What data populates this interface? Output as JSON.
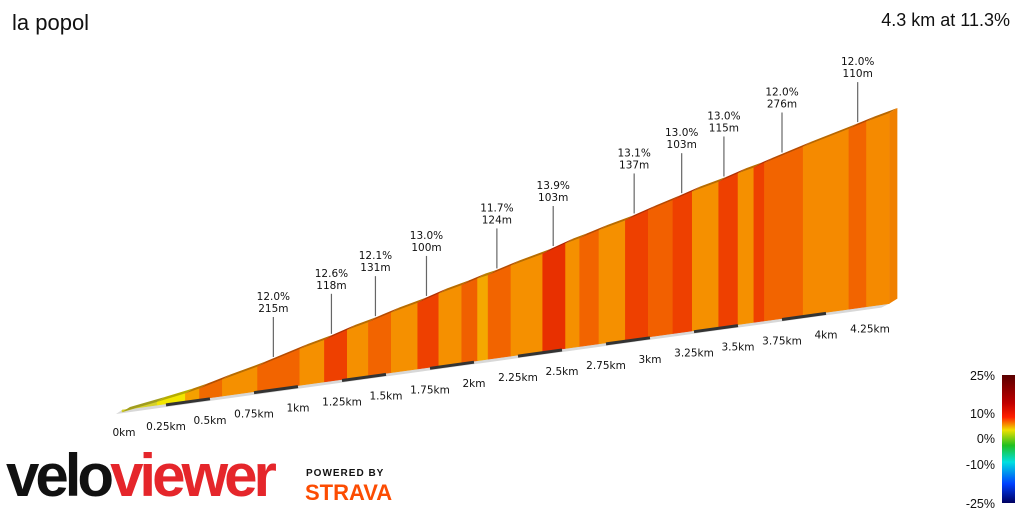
{
  "header": {
    "title": "la popol",
    "summary": "4.3 km at 11.3%"
  },
  "chart_data": {
    "type": "area",
    "title": "la popol",
    "subtitle": "4.3 km at 11.3%",
    "x_unit": "km",
    "x_ticks": [
      "0km",
      "0.25km",
      "0.5km",
      "0.75km",
      "1km",
      "1.25km",
      "1.5km",
      "1.75km",
      "2km",
      "2.25km",
      "2.5km",
      "2.75km",
      "3km",
      "3.25km",
      "3.5km",
      "3.75km",
      "4km",
      "4.25km"
    ],
    "segments": [
      {
        "end_km": 0.2,
        "gradient": 4,
        "color": "#d6d12a"
      },
      {
        "end_km": 0.36,
        "gradient": 7,
        "color": "#f2e600"
      },
      {
        "end_km": 0.44,
        "gradient": 9,
        "color": "#f5a000"
      },
      {
        "end_km": 0.57,
        "gradient": 11,
        "color": "#f06a00"
      },
      {
        "end_km": 0.77,
        "gradient": 10,
        "color": "#f59000"
      },
      {
        "end_km": 1.01,
        "gradient": 12,
        "color": "#f26400"
      },
      {
        "end_km": 1.15,
        "gradient": 10,
        "color": "#f59000"
      },
      {
        "end_km": 1.28,
        "gradient": 13,
        "color": "#ee4000"
      },
      {
        "end_km": 1.4,
        "gradient": 10,
        "color": "#f59000"
      },
      {
        "end_km": 1.53,
        "gradient": 12,
        "color": "#f26400"
      },
      {
        "end_km": 1.68,
        "gradient": 10,
        "color": "#f59000"
      },
      {
        "end_km": 1.8,
        "gradient": 13,
        "color": "#ee4000"
      },
      {
        "end_km": 1.93,
        "gradient": 10,
        "color": "#f59000"
      },
      {
        "end_km": 2.02,
        "gradient": 12,
        "color": "#f06000"
      },
      {
        "end_km": 2.08,
        "gradient": 8,
        "color": "#f5a800"
      },
      {
        "end_km": 2.21,
        "gradient": 12,
        "color": "#f26400"
      },
      {
        "end_km": 2.39,
        "gradient": 10,
        "color": "#f59000"
      },
      {
        "end_km": 2.52,
        "gradient": 14,
        "color": "#e83000"
      },
      {
        "end_km": 2.6,
        "gradient": 10,
        "color": "#f59000"
      },
      {
        "end_km": 2.71,
        "gradient": 12,
        "color": "#f26400"
      },
      {
        "end_km": 2.86,
        "gradient": 10,
        "color": "#f59000"
      },
      {
        "end_km": 2.99,
        "gradient": 13,
        "color": "#ee4000"
      },
      {
        "end_km": 3.13,
        "gradient": 12,
        "color": "#f26000"
      },
      {
        "end_km": 3.24,
        "gradient": 13,
        "color": "#ee4000"
      },
      {
        "end_km": 3.39,
        "gradient": 10,
        "color": "#f59000"
      },
      {
        "end_km": 3.5,
        "gradient": 13,
        "color": "#ee4000"
      },
      {
        "end_km": 3.59,
        "gradient": 10,
        "color": "#f59000"
      },
      {
        "end_km": 3.65,
        "gradient": 13,
        "color": "#ee4000"
      },
      {
        "end_km": 3.87,
        "gradient": 12,
        "color": "#f26400"
      },
      {
        "end_km": 4.13,
        "gradient": 11,
        "color": "#f58a00"
      },
      {
        "end_km": 4.23,
        "gradient": 12,
        "color": "#f26400"
      },
      {
        "end_km": 4.36,
        "gradient": 10,
        "color": "#f58a00"
      }
    ],
    "annotations": [
      {
        "km": 0.86,
        "gradient": "12.0%",
        "length": "215m"
      },
      {
        "km": 1.19,
        "gradient": "12.6%",
        "length": "118m"
      },
      {
        "km": 1.44,
        "gradient": "12.1%",
        "length": "131m"
      },
      {
        "km": 1.73,
        "gradient": "13.0%",
        "length": "100m"
      },
      {
        "km": 2.13,
        "gradient": "11.7%",
        "length": "124m"
      },
      {
        "km": 2.45,
        "gradient": "13.9%",
        "length": "103m"
      },
      {
        "km": 2.91,
        "gradient": "13.1%",
        "length": "137m"
      },
      {
        "km": 3.18,
        "gradient": "13.0%",
        "length": "103m"
      },
      {
        "km": 3.42,
        "gradient": "13.0%",
        "length": "115m"
      },
      {
        "km": 3.75,
        "gradient": "12.0%",
        "length": "276m"
      },
      {
        "km": 4.18,
        "gradient": "12.0%",
        "length": "110m"
      }
    ],
    "color_scale": {
      "labels": [
        "25%",
        "10%",
        "0%",
        "-10%",
        "-25%"
      ],
      "stops": [
        "#5a0000",
        "#c00000",
        "#ff2000",
        "#f0e000",
        "#20c020",
        "#00e0e0",
        "#0040ff",
        "#000060"
      ]
    }
  },
  "branding": {
    "logo_left": "velo",
    "logo_right": "viewer",
    "powered_by": "POWERED BY",
    "strava": "STRAVA"
  }
}
